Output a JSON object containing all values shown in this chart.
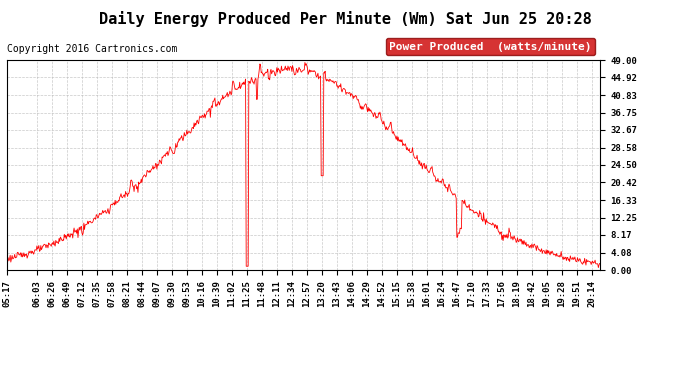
{
  "title": "Daily Energy Produced Per Minute (Wm) Sat Jun 25 20:28",
  "copyright": "Copyright 2016 Cartronics.com",
  "legend_label": "Power Produced  (watts/minute)",
  "line_color": "#ff0000",
  "background_color": "#ffffff",
  "grid_color": "#bbbbbb",
  "legend_bg": "#cc0000",
  "legend_text_color": "#ffffff",
  "ylim": [
    0.0,
    49.0
  ],
  "yticks": [
    0.0,
    4.08,
    8.17,
    12.25,
    16.33,
    20.42,
    24.5,
    28.58,
    32.67,
    36.75,
    40.83,
    44.92,
    49.0
  ],
  "xtick_labels": [
    "05:17",
    "06:03",
    "06:26",
    "06:49",
    "07:12",
    "07:35",
    "07:58",
    "08:21",
    "08:44",
    "09:07",
    "09:30",
    "09:53",
    "10:16",
    "10:39",
    "11:02",
    "11:25",
    "11:48",
    "12:11",
    "12:34",
    "12:57",
    "13:20",
    "13:43",
    "14:06",
    "14:29",
    "14:52",
    "15:15",
    "15:38",
    "16:01",
    "16:24",
    "16:47",
    "17:10",
    "17:33",
    "17:56",
    "18:19",
    "18:42",
    "19:05",
    "19:28",
    "19:51",
    "20:14"
  ],
  "title_fontsize": 11,
  "copyright_fontsize": 7,
  "legend_fontsize": 8,
  "tick_fontsize": 6.5
}
